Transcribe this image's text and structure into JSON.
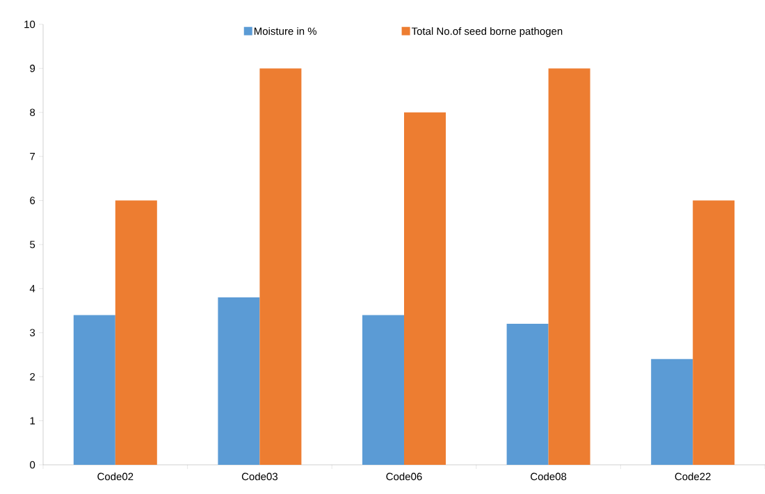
{
  "chart_data": {
    "type": "bar",
    "categories": [
      "Code02",
      "Code03",
      "Code06",
      "Code08",
      "Code22"
    ],
    "series": [
      {
        "name": "Moisture in %",
        "color": "#5b9bd5",
        "values": [
          3.4,
          3.8,
          3.4,
          3.2,
          2.4
        ]
      },
      {
        "name": "Total No.of seed borne pathogen",
        "color": "#ed7d31",
        "values": [
          6,
          9,
          8,
          9,
          6
        ]
      }
    ],
    "ylim": [
      0,
      10
    ],
    "yticks": [
      0,
      1,
      2,
      3,
      4,
      5,
      6,
      7,
      8,
      9,
      10
    ],
    "grid": false,
    "legend": "top"
  }
}
